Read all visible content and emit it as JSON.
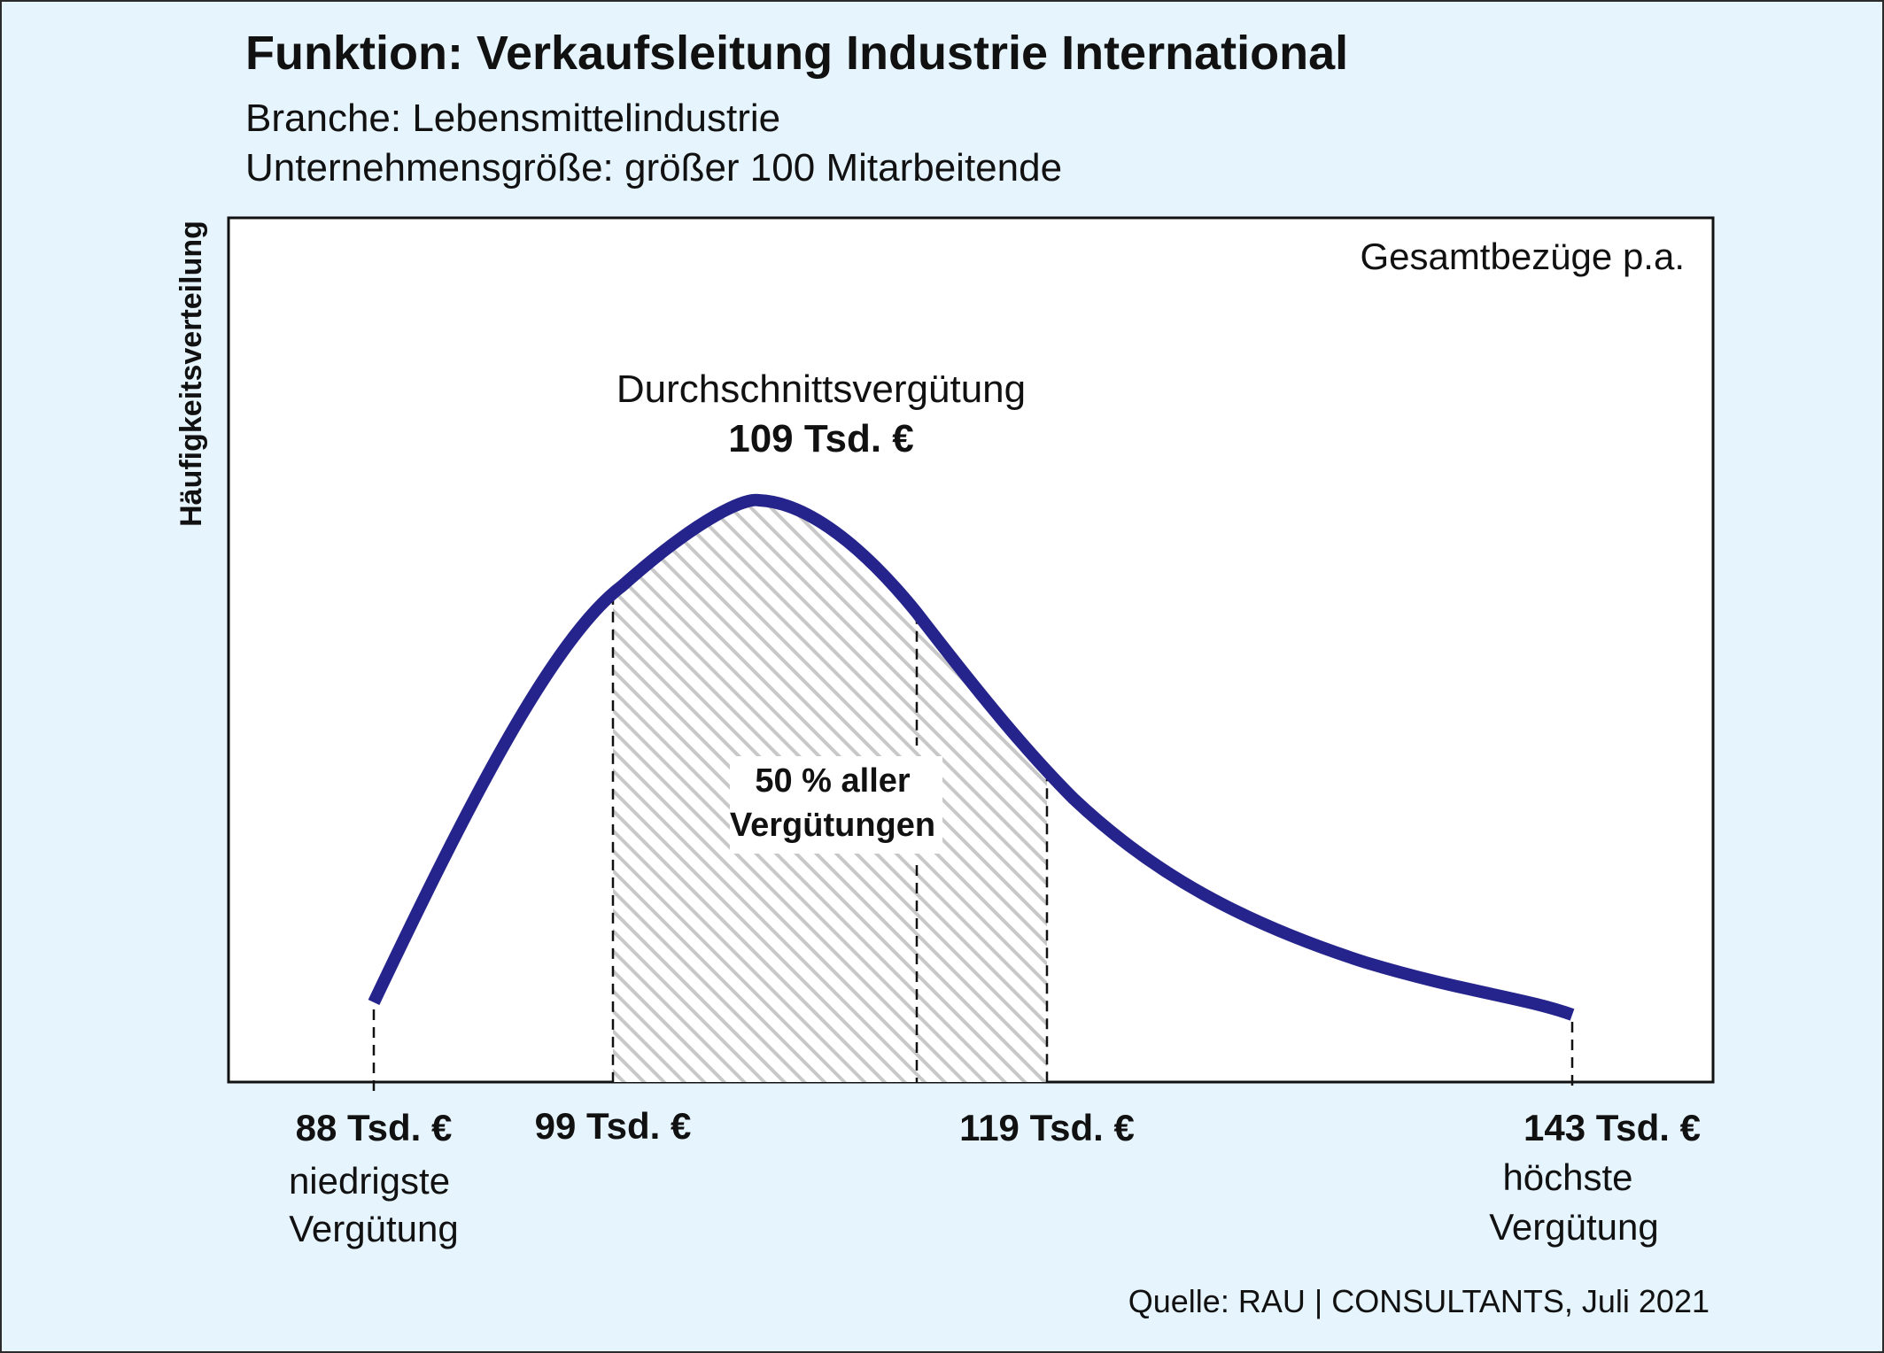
{
  "header": {
    "title": "Funktion: Verkaufsleitung Industrie International",
    "branche": "Branche: Lebensmittelindustrie",
    "groesse": "Unternehmensgröße: größer 100 Mitarbeitende"
  },
  "colors": {
    "background": "#e6f4fd",
    "curve": "#25248c",
    "hatch": "#c8c8c8",
    "plot_area": "#ffffff"
  },
  "chart_data": {
    "type": "area",
    "title": "Funktion: Verkaufsleitung Industrie International",
    "ylabel": "Häufigkeitsverteilung",
    "series_label": "Gesamtbezüge p.a.",
    "unit": "Tsd. €",
    "x_range": [
      88,
      143
    ],
    "markers": [
      {
        "key": "min",
        "value": 88,
        "label": "88 Tsd. €",
        "caption": [
          "niedrigste",
          "Vergütung"
        ]
      },
      {
        "key": "q1",
        "value": 99,
        "label": "99 Tsd. €"
      },
      {
        "key": "mean",
        "value": 109,
        "label": "109 Tsd. €",
        "caption": [
          "Durchschnittsvergütung"
        ]
      },
      {
        "key": "q3",
        "value": 119,
        "label": "119 Tsd. €"
      },
      {
        "key": "max",
        "value": 143,
        "label": "143 Tsd. €",
        "caption": [
          "höchste",
          "Vergütung"
        ]
      }
    ],
    "shaded_band": {
      "from": 99,
      "to": 119,
      "label": [
        "50 % aller",
        "Vergütungen"
      ]
    },
    "source": "Quelle: RAU | CONSULTANTS, Juli 2021"
  }
}
